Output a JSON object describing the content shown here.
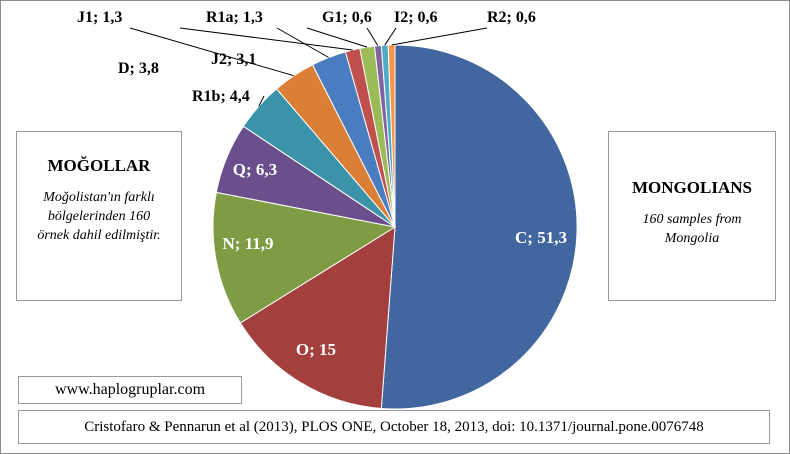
{
  "chart_data": {
    "type": "pie",
    "slices": [
      {
        "label": "C; 51,3",
        "value": 51.3,
        "color": "#4166A0"
      },
      {
        "label": "O; 15",
        "value": 15.0,
        "color": "#A3403E"
      },
      {
        "label": "N; 11,9",
        "value": 11.9,
        "color": "#7F9C45"
      },
      {
        "label": "Q; 6,3",
        "value": 6.3,
        "color": "#6A4F8C"
      },
      {
        "label": "R1b; 4,4",
        "value": 4.4,
        "color": "#3A93A9"
      },
      {
        "label": "D; 3,8",
        "value": 3.8,
        "color": "#DC7F36"
      },
      {
        "label": "J2; 3,1",
        "value": 3.1,
        "color": "#4A7CC0"
      },
      {
        "label": "J1; 1,3",
        "value": 1.3,
        "color": "#C0504D"
      },
      {
        "label": "R1a; 1,3",
        "value": 1.3,
        "color": "#9BBB59"
      },
      {
        "label": "G1; 0,6",
        "value": 0.6,
        "color": "#8064A2"
      },
      {
        "label": "I2; 0,6",
        "value": 0.6,
        "color": "#4BACC6"
      },
      {
        "label": "R2; 0,6",
        "value": 0.6,
        "color": "#F79646"
      }
    ]
  },
  "left_box": {
    "title": "MOĞOLLAR",
    "text": "Moğolistan'ın farklı bölgelerinden 160 örnek dahil edilmiştir."
  },
  "right_box": {
    "title": "MONGOLIANS",
    "text": "160 samples from Mongolia"
  },
  "website": "www.haplogruplar.com",
  "citation": "Cristofaro & Pennarun et al (2013), PLOS ONE, October 18, 2013, doi: 10.1371/journal.pone.0076748"
}
